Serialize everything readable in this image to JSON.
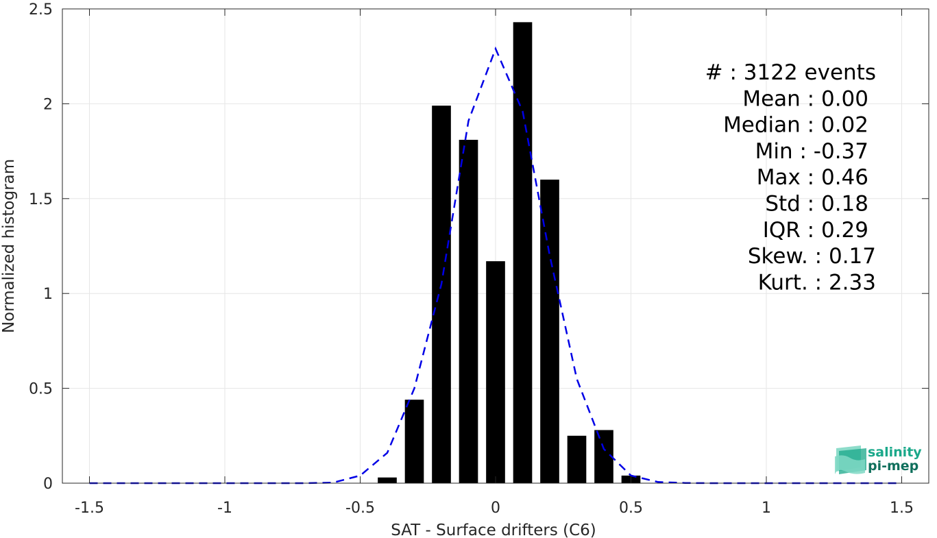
{
  "chart_data": {
    "type": "bar",
    "xlabel": "SAT - Surface drifters (C6)",
    "ylabel": "Normalized histogram",
    "xlim": [
      -1.6,
      1.6
    ],
    "ylim": [
      0,
      2.5
    ],
    "xticks": [
      -1.5,
      -1,
      -0.5,
      0,
      0.5,
      1,
      1.5
    ],
    "xtick_labels": [
      "-1.5",
      "-1",
      "-0.5",
      "0",
      "0.5",
      "1",
      "1.5"
    ],
    "yticks": [
      0,
      0.5,
      1,
      1.5,
      2,
      2.5
    ],
    "ytick_labels": [
      "0",
      "0.5",
      "1",
      "1.5",
      "2",
      "2.5"
    ],
    "grid": true,
    "bar_width": 0.07,
    "bar_color": "#000000",
    "bars": [
      {
        "x": -0.4,
        "value": 0.03
      },
      {
        "x": -0.3,
        "value": 0.44
      },
      {
        "x": -0.2,
        "value": 1.99
      },
      {
        "x": -0.1,
        "value": 1.81
      },
      {
        "x": 0.0,
        "value": 1.17
      },
      {
        "x": 0.1,
        "value": 2.43
      },
      {
        "x": 0.2,
        "value": 1.6
      },
      {
        "x": 0.3,
        "value": 0.25
      },
      {
        "x": 0.4,
        "value": 0.28
      },
      {
        "x": 0.5,
        "value": 0.04
      }
    ],
    "fit_curve": {
      "style": "dashed",
      "color": "#0000e6",
      "x": [
        -1.5,
        -1.4,
        -1.3,
        -1.2,
        -1.1,
        -1.0,
        -0.9,
        -0.8,
        -0.7,
        -0.6,
        -0.5,
        -0.4,
        -0.3,
        -0.2,
        -0.1,
        0.0,
        0.1,
        0.2,
        0.3,
        0.4,
        0.5,
        0.6,
        0.7,
        0.8,
        0.9,
        1.0,
        1.1,
        1.2,
        1.3,
        1.4,
        1.5
      ],
      "y": [
        0,
        0,
        0,
        0,
        0,
        0,
        0,
        0,
        0,
        0.003,
        0.04,
        0.16,
        0.5,
        1.05,
        1.91,
        2.29,
        1.96,
        1.2,
        0.55,
        0.18,
        0.04,
        0.006,
        0.001,
        0,
        0,
        0,
        0,
        0,
        0,
        0,
        0
      ]
    },
    "stats": [
      "#  : 3122 events",
      "Mean : 0.00",
      "Median : 0.02",
      "Min : -0.37",
      "Max : 0.46",
      "Std : 0.18",
      "IQR : 0.29",
      "Skew. : 0.17",
      "Kurt. : 2.33"
    ]
  },
  "logo": {
    "line1": "salinity",
    "line2": "pi-mep",
    "color_primary": "#1aa88a",
    "color_secondary": "#0f6f5c"
  },
  "colors": {
    "axis": "#262626",
    "grid": "#e6e6e6"
  }
}
